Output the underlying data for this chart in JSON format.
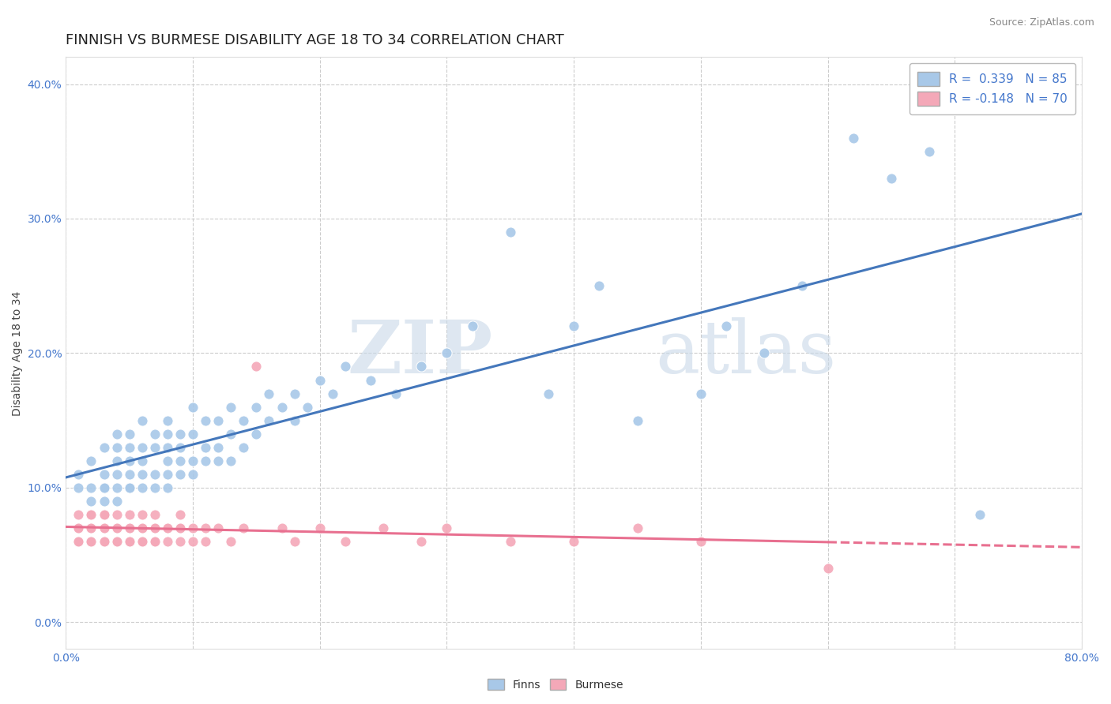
{
  "title": "FINNISH VS BURMESE DISABILITY AGE 18 TO 34 CORRELATION CHART",
  "source": "Source: ZipAtlas.com",
  "ylabel": "Disability Age 18 to 34",
  "xlim": [
    0.0,
    0.8
  ],
  "ylim": [
    -0.02,
    0.42
  ],
  "xticks": [
    0.0,
    0.1,
    0.2,
    0.3,
    0.4,
    0.5,
    0.6,
    0.7,
    0.8
  ],
  "yticks": [
    0.0,
    0.1,
    0.2,
    0.3,
    0.4
  ],
  "ytick_labels": [
    "0.0%",
    "10.0%",
    "20.0%",
    "30.0%",
    "40.0%"
  ],
  "finns_color": "#a8c8e8",
  "burmese_color": "#f4a8b8",
  "finns_line_color": "#4477bb",
  "burmese_line_color": "#e87090",
  "watermark_zip": "ZIP",
  "watermark_atlas": "atlas",
  "finns_R": 0.339,
  "finns_N": 85,
  "burmese_R": -0.148,
  "burmese_N": 70,
  "title_fontsize": 13,
  "axis_fontsize": 10,
  "legend_fontsize": 11,
  "grid_color": "#cccccc",
  "background_color": "#ffffff",
  "tick_color": "#4477cc",
  "finns_x": [
    0.01,
    0.01,
    0.02,
    0.02,
    0.02,
    0.03,
    0.03,
    0.03,
    0.03,
    0.03,
    0.04,
    0.04,
    0.04,
    0.04,
    0.04,
    0.04,
    0.05,
    0.05,
    0.05,
    0.05,
    0.05,
    0.05,
    0.06,
    0.06,
    0.06,
    0.06,
    0.06,
    0.07,
    0.07,
    0.07,
    0.07,
    0.08,
    0.08,
    0.08,
    0.08,
    0.08,
    0.08,
    0.09,
    0.09,
    0.09,
    0.09,
    0.1,
    0.1,
    0.1,
    0.1,
    0.11,
    0.11,
    0.11,
    0.12,
    0.12,
    0.12,
    0.13,
    0.13,
    0.13,
    0.14,
    0.14,
    0.15,
    0.15,
    0.16,
    0.16,
    0.17,
    0.18,
    0.18,
    0.19,
    0.2,
    0.21,
    0.22,
    0.24,
    0.26,
    0.28,
    0.3,
    0.32,
    0.35,
    0.38,
    0.4,
    0.42,
    0.45,
    0.5,
    0.52,
    0.55,
    0.58,
    0.62,
    0.65,
    0.68,
    0.72
  ],
  "finns_y": [
    0.1,
    0.11,
    0.09,
    0.1,
    0.12,
    0.1,
    0.11,
    0.09,
    0.13,
    0.1,
    0.1,
    0.11,
    0.13,
    0.09,
    0.12,
    0.14,
    0.11,
    0.1,
    0.12,
    0.14,
    0.1,
    0.13,
    0.11,
    0.13,
    0.1,
    0.12,
    0.15,
    0.11,
    0.13,
    0.1,
    0.14,
    0.12,
    0.1,
    0.13,
    0.11,
    0.15,
    0.14,
    0.12,
    0.14,
    0.11,
    0.13,
    0.12,
    0.14,
    0.11,
    0.16,
    0.13,
    0.15,
    0.12,
    0.13,
    0.15,
    0.12,
    0.14,
    0.12,
    0.16,
    0.13,
    0.15,
    0.14,
    0.16,
    0.15,
    0.17,
    0.16,
    0.15,
    0.17,
    0.16,
    0.18,
    0.17,
    0.19,
    0.18,
    0.17,
    0.19,
    0.2,
    0.22,
    0.29,
    0.17,
    0.22,
    0.25,
    0.15,
    0.17,
    0.22,
    0.2,
    0.25,
    0.36,
    0.33,
    0.35,
    0.08
  ],
  "burmese_x": [
    0.01,
    0.01,
    0.01,
    0.01,
    0.01,
    0.02,
    0.02,
    0.02,
    0.02,
    0.02,
    0.02,
    0.02,
    0.03,
    0.03,
    0.03,
    0.03,
    0.03,
    0.03,
    0.03,
    0.03,
    0.03,
    0.04,
    0.04,
    0.04,
    0.04,
    0.04,
    0.04,
    0.05,
    0.05,
    0.05,
    0.05,
    0.05,
    0.05,
    0.06,
    0.06,
    0.06,
    0.06,
    0.06,
    0.07,
    0.07,
    0.07,
    0.07,
    0.07,
    0.08,
    0.08,
    0.08,
    0.09,
    0.09,
    0.09,
    0.09,
    0.1,
    0.1,
    0.11,
    0.11,
    0.12,
    0.13,
    0.14,
    0.15,
    0.17,
    0.18,
    0.2,
    0.22,
    0.25,
    0.28,
    0.3,
    0.35,
    0.4,
    0.45,
    0.5,
    0.6
  ],
  "burmese_y": [
    0.07,
    0.06,
    0.08,
    0.07,
    0.06,
    0.07,
    0.06,
    0.08,
    0.07,
    0.06,
    0.07,
    0.08,
    0.06,
    0.07,
    0.06,
    0.07,
    0.08,
    0.07,
    0.06,
    0.07,
    0.08,
    0.07,
    0.06,
    0.07,
    0.08,
    0.06,
    0.07,
    0.07,
    0.06,
    0.08,
    0.07,
    0.06,
    0.07,
    0.07,
    0.06,
    0.08,
    0.07,
    0.06,
    0.07,
    0.06,
    0.08,
    0.07,
    0.06,
    0.07,
    0.06,
    0.07,
    0.07,
    0.06,
    0.07,
    0.08,
    0.07,
    0.06,
    0.07,
    0.06,
    0.07,
    0.06,
    0.07,
    0.19,
    0.07,
    0.06,
    0.07,
    0.06,
    0.07,
    0.06,
    0.07,
    0.06,
    0.06,
    0.07,
    0.06,
    0.04
  ]
}
